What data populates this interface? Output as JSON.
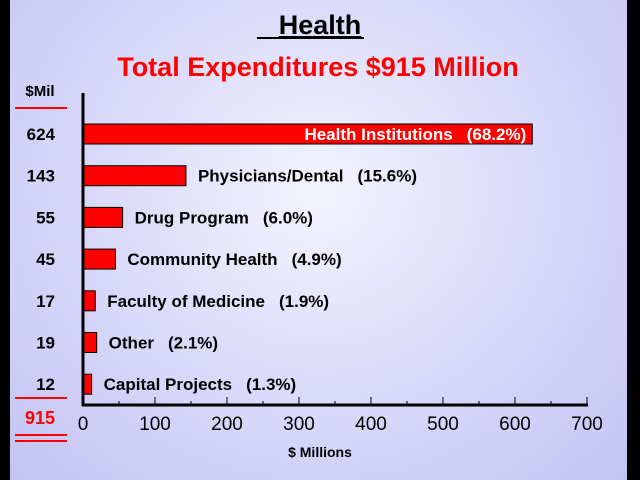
{
  "chart_data": {
    "type": "bar",
    "orientation": "horizontal",
    "title": "Health",
    "subtitle": "Total Expenditures $915 Million",
    "xlabel": "$ Millions",
    "value_column_header": "$Mil",
    "total": "915",
    "xlim": [
      0,
      700
    ],
    "xticks": [
      0,
      100,
      200,
      300,
      400,
      500,
      600,
      700
    ],
    "categories": [
      "Health Institutions",
      "Physicians/Dental",
      "Drug  Program",
      "Community Health",
      "Faculty of Medicine",
      "Other",
      "Capital Projects"
    ],
    "values": [
      624,
      143,
      55,
      45,
      17,
      19,
      12
    ],
    "value_labels": [
      "624",
      "143",
      "55",
      "45",
      "17",
      "19",
      "12"
    ],
    "percent_labels": [
      "(68.2%)",
      "(15.6%)",
      "(6.0%)",
      "(4.9%)",
      "(1.9%)",
      "(2.1%)",
      "(1.3%)"
    ],
    "grid": false,
    "legend": "none",
    "colors": {
      "bar": "#ff0000",
      "title": "#000000",
      "subtitle": "#ff0000",
      "total": "#ff0000"
    }
  }
}
